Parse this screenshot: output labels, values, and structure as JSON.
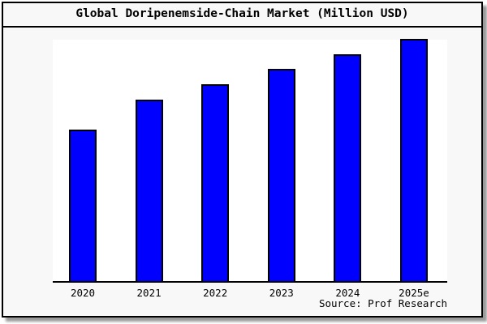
{
  "title": "Global Doripenemside-Chain Market (Million USD)",
  "source": "Source: Prof Research",
  "colors": {
    "bar_fill": "#0000ff",
    "bar_border": "#000000",
    "card_background": "#f8f8f8",
    "plot_background": "#ffffff",
    "text": "#000000"
  },
  "chart_data": {
    "type": "bar",
    "title": "Global Doripenemside-Chain Market (Million USD)",
    "categories": [
      "2020",
      "2021",
      "2022",
      "2023",
      "2024",
      "2025e"
    ],
    "values": [
      62.5,
      74.9,
      81.3,
      87.6,
      93.6,
      100
    ],
    "xlabel": "",
    "ylabel": "",
    "ylim": [
      0,
      100
    ],
    "grid": false,
    "legend": false,
    "y_axis_ticks_visible": false,
    "values_note": "No y-axis scale shown in chart; values are relative estimates with tallest bar (2025e) = 100",
    "source_label": "Source: Prof Research",
    "bar_color": "#0000ff",
    "bar_border_color": "#000000"
  }
}
